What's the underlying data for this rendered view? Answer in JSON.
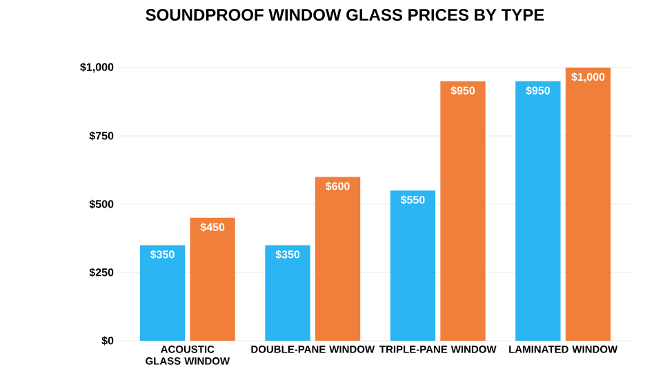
{
  "chart_data": {
    "type": "bar",
    "title": "SOUNDPROOF WINDOW GLASS PRICES BY TYPE",
    "categories": [
      "ACOUSTIC GLASS WINDOW",
      "DOUBLE-PANE WINDOW",
      "TRIPLE-PANE WINDOW",
      "LAMINATED WINDOW"
    ],
    "series": [
      {
        "color": "#2bb5f2",
        "values": [
          350,
          350,
          550,
          950
        ],
        "value_labels": [
          "$350",
          "$350",
          "$550",
          "$950"
        ]
      },
      {
        "color": "#f07f3c",
        "values": [
          450,
          600,
          950,
          1000
        ],
        "value_labels": [
          "$450",
          "$600",
          "$950",
          "$1,000"
        ]
      }
    ],
    "ylim": [
      0,
      1000
    ],
    "yticks": [
      {
        "value": 0,
        "label": "$0"
      },
      {
        "value": 250,
        "label": "$250"
      },
      {
        "value": 500,
        "label": "$500"
      },
      {
        "value": 750,
        "label": "$750"
      },
      {
        "value": 1000,
        "label": "$1,000"
      }
    ],
    "grid": "y"
  }
}
